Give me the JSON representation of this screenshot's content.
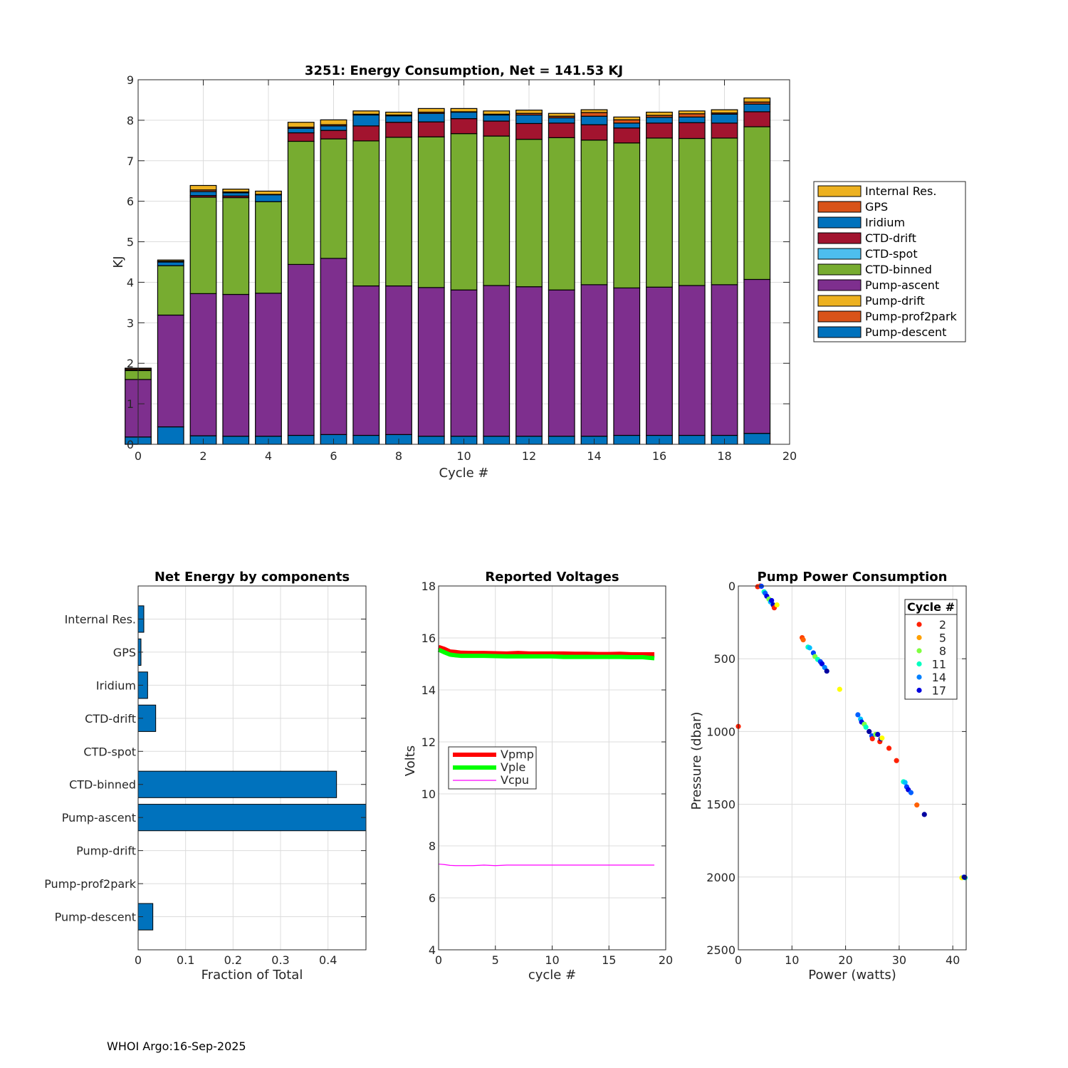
{
  "footer": "WHOI Argo:16-Sep-2025",
  "chart_data": [
    {
      "id": "energy",
      "type": "bar",
      "stacked": true,
      "title": "3251: Energy Consumption,  Net = 141.53 KJ",
      "xlabel": "Cycle #",
      "ylabel": "KJ",
      "xlim": [
        0,
        20
      ],
      "ylim": [
        0,
        9
      ],
      "xticks": [
        0,
        2,
        4,
        6,
        8,
        10,
        12,
        14,
        16,
        18,
        20
      ],
      "yticks": [
        0,
        1,
        2,
        3,
        4,
        5,
        6,
        7,
        8,
        9
      ],
      "grid": true,
      "legend_position": "outside-right",
      "categories": [
        0,
        1,
        2,
        3,
        4,
        5,
        6,
        7,
        8,
        9,
        10,
        11,
        12,
        13,
        14,
        15,
        16,
        17,
        18,
        19
      ],
      "series": [
        {
          "name": "Pump-descent",
          "color": "#0072BD",
          "values": [
            0.18,
            0.43,
            0.21,
            0.2,
            0.2,
            0.22,
            0.24,
            0.22,
            0.24,
            0.2,
            0.2,
            0.2,
            0.2,
            0.2,
            0.2,
            0.22,
            0.22,
            0.22,
            0.22,
            0.27
          ]
        },
        {
          "name": "Pump-prof2park",
          "color": "#D95319",
          "values": [
            0,
            0,
            0,
            0,
            0,
            0,
            0,
            0,
            0,
            0,
            0,
            0,
            0,
            0,
            0,
            0,
            0,
            0,
            0,
            0
          ]
        },
        {
          "name": "Pump-drift",
          "color": "#EDB120",
          "values": [
            0,
            0,
            0,
            0,
            0,
            0,
            0,
            0,
            0,
            0,
            0,
            0,
            0,
            0,
            0,
            0,
            0,
            0,
            0,
            0
          ]
        },
        {
          "name": "Pump-ascent",
          "color": "#7E2F8E",
          "values": [
            1.42,
            2.76,
            3.51,
            3.5,
            3.53,
            4.22,
            4.35,
            3.69,
            3.67,
            3.67,
            3.61,
            3.72,
            3.69,
            3.61,
            3.74,
            3.64,
            3.66,
            3.7,
            3.72,
            3.8
          ]
        },
        {
          "name": "CTD-binned",
          "color": "#77AC30",
          "values": [
            0.22,
            1.22,
            2.38,
            2.39,
            2.26,
            3.04,
            2.95,
            3.58,
            3.67,
            3.72,
            3.86,
            3.69,
            3.64,
            3.76,
            3.57,
            3.58,
            3.68,
            3.63,
            3.62,
            3.77
          ]
        },
        {
          "name": "CTD-spot",
          "color": "#4DBEEE",
          "values": [
            0,
            0,
            0,
            0,
            0,
            0,
            0,
            0,
            0,
            0,
            0,
            0,
            0,
            0,
            0,
            0,
            0,
            0,
            0,
            0
          ]
        },
        {
          "name": "CTD-drift",
          "color": "#A2142F",
          "values": [
            0,
            0,
            0.04,
            0.04,
            0,
            0.21,
            0.21,
            0.37,
            0.37,
            0.37,
            0.37,
            0.37,
            0.39,
            0.36,
            0.38,
            0.37,
            0.37,
            0.39,
            0.37,
            0.37
          ]
        },
        {
          "name": "Iridium",
          "color": "#0072BD",
          "values": [
            0.02,
            0.09,
            0.1,
            0.08,
            0.17,
            0.11,
            0.11,
            0.27,
            0.16,
            0.21,
            0.16,
            0.15,
            0.21,
            0.13,
            0.21,
            0.12,
            0.14,
            0.14,
            0.22,
            0.19
          ]
        },
        {
          "name": "GPS",
          "color": "#D95319",
          "values": [
            0.03,
            0.02,
            0.04,
            0.02,
            0.01,
            0.03,
            0.03,
            0.02,
            0.02,
            0.03,
            0.01,
            0.02,
            0.04,
            0.04,
            0.09,
            0.08,
            0.05,
            0.08,
            0.03,
            0.05
          ]
        },
        {
          "name": "Internal Res.",
          "color": "#EDB120",
          "values": [
            0.01,
            0.03,
            0.11,
            0.07,
            0.08,
            0.12,
            0.12,
            0.08,
            0.07,
            0.09,
            0.08,
            0.08,
            0.08,
            0.07,
            0.07,
            0.07,
            0.08,
            0.07,
            0.08,
            0.1
          ]
        }
      ],
      "legend": [
        "Internal Res.",
        "GPS",
        "Iridium",
        "CTD-drift",
        "CTD-spot",
        "CTD-binned",
        "Pump-ascent",
        "Pump-drift",
        "Pump-prof2park",
        "Pump-descent"
      ]
    },
    {
      "id": "components",
      "type": "bar",
      "orientation": "horizontal",
      "title": "Net Energy by components",
      "xlabel": "Fraction of Total",
      "ylabel": "",
      "xlim": [
        0,
        0.48
      ],
      "xticks": [
        0,
        0.1,
        0.2,
        0.3,
        0.4
      ],
      "xticklabels": [
        "0",
        "0.1",
        "0.2",
        "0.3",
        "0.4"
      ],
      "grid": true,
      "color": "#0072BD",
      "categories": [
        "Internal Res.",
        "GPS",
        "Iridium",
        "CTD-drift",
        "CTD-spot",
        "CTD-binned",
        "Pump-ascent",
        "Pump-drift",
        "Pump-prof2park",
        "Pump-descent"
      ],
      "values": [
        0.012,
        0.006,
        0.02,
        0.037,
        0,
        0.418,
        0.5,
        0,
        0,
        0.031
      ]
    },
    {
      "id": "voltages",
      "type": "line",
      "title": "Reported Voltages",
      "xlabel": "cycle #",
      "ylabel": "Volts",
      "xlim": [
        0,
        20
      ],
      "ylim": [
        4,
        18
      ],
      "xticks": [
        0,
        5,
        10,
        15,
        20
      ],
      "yticks": [
        4,
        6,
        8,
        10,
        12,
        14,
        16,
        18
      ],
      "grid": true,
      "legend_position": "middle-left",
      "x": [
        0,
        0.5,
        1,
        1.5,
        2,
        3,
        4,
        5,
        6,
        7,
        8,
        9,
        10,
        11,
        12,
        13,
        14,
        15,
        16,
        17,
        18,
        19
      ],
      "series": [
        {
          "name": "Vpmp",
          "color": "#FF0000",
          "width": "thick",
          "values": [
            15.65,
            15.58,
            15.48,
            15.46,
            15.43,
            15.42,
            15.42,
            15.41,
            15.4,
            15.42,
            15.4,
            15.4,
            15.4,
            15.4,
            15.39,
            15.39,
            15.38,
            15.38,
            15.39,
            15.37,
            15.37,
            15.37
          ]
        },
        {
          "name": "Vple",
          "color": "#00FF00",
          "width": "thick",
          "values": [
            15.55,
            15.45,
            15.36,
            15.33,
            15.31,
            15.31,
            15.31,
            15.3,
            15.29,
            15.29,
            15.29,
            15.29,
            15.29,
            15.27,
            15.27,
            15.27,
            15.27,
            15.27,
            15.27,
            15.26,
            15.26,
            15.22
          ]
        },
        {
          "name": "Vcpu",
          "color": "#FF00FF",
          "width": "thin",
          "values": [
            7.3,
            7.28,
            7.25,
            7.24,
            7.24,
            7.24,
            7.26,
            7.24,
            7.26,
            7.26,
            7.26,
            7.26,
            7.26,
            7.26,
            7.26,
            7.26,
            7.26,
            7.26,
            7.26,
            7.26,
            7.26,
            7.26
          ]
        }
      ]
    },
    {
      "id": "pump",
      "type": "scatter",
      "title": "Pump Power Consumption",
      "xlabel": "Power (watts)",
      "ylabel": "Pressure (dbar)",
      "xlim": [
        0,
        42.5
      ],
      "ylim": [
        2500,
        0
      ],
      "xticks": [
        0,
        10,
        20,
        30,
        40
      ],
      "yticks": [
        0,
        500,
        1000,
        1500,
        2000,
        2500
      ],
      "grid": true,
      "legend_title": "Cycle #",
      "legend_position": "top-right",
      "legend": [
        {
          "label": "2",
          "color": "#FF2000"
        },
        {
          "label": "5",
          "color": "#FFA000"
        },
        {
          "label": "8",
          "color": "#80FF40"
        },
        {
          "label": "11",
          "color": "#00FFC0"
        },
        {
          "label": "14",
          "color": "#0080FF"
        },
        {
          "label": "17",
          "color": "#0000E0"
        }
      ],
      "points": [
        {
          "x": 3.6,
          "y": 5,
          "c": "#FF2000"
        },
        {
          "x": 4.1,
          "y": 0,
          "c": "#FF4000"
        },
        {
          "x": 4.3,
          "y": 2,
          "c": "#0040FF"
        },
        {
          "x": 4.8,
          "y": 40,
          "c": "#00FFC0"
        },
        {
          "x": 5.0,
          "y": 50,
          "c": "#0060FF"
        },
        {
          "x": 5.3,
          "y": 70,
          "c": "#0000E0"
        },
        {
          "x": 5.7,
          "y": 90,
          "c": "#80FF40"
        },
        {
          "x": 6.0,
          "y": 110,
          "c": "#00C0FF"
        },
        {
          "x": 6.2,
          "y": 100,
          "c": "#0000E0"
        },
        {
          "x": 6.5,
          "y": 130,
          "c": "#0000C0"
        },
        {
          "x": 6.7,
          "y": 150,
          "c": "#FF2000"
        },
        {
          "x": 7.2,
          "y": 130,
          "c": "#FFFF00"
        },
        {
          "x": 0.0,
          "y": 965,
          "c": "#FF2000"
        },
        {
          "x": 11.9,
          "y": 355,
          "c": "#FF4000"
        },
        {
          "x": 12.1,
          "y": 370,
          "c": "#FF6000"
        },
        {
          "x": 13.0,
          "y": 420,
          "c": "#00FFC0"
        },
        {
          "x": 13.3,
          "y": 425,
          "c": "#00C0FF"
        },
        {
          "x": 14.0,
          "y": 460,
          "c": "#0040FF"
        },
        {
          "x": 14.3,
          "y": 485,
          "c": "#80FF40"
        },
        {
          "x": 14.8,
          "y": 505,
          "c": "#00FFC0"
        },
        {
          "x": 15.3,
          "y": 520,
          "c": "#0040FF"
        },
        {
          "x": 15.6,
          "y": 535,
          "c": "#0000E0"
        },
        {
          "x": 16.1,
          "y": 560,
          "c": "#0080FF"
        },
        {
          "x": 16.5,
          "y": 585,
          "c": "#0000A0"
        },
        {
          "x": 18.9,
          "y": 710,
          "c": "#FFFF00"
        },
        {
          "x": 22.3,
          "y": 885,
          "c": "#0060FF"
        },
        {
          "x": 22.8,
          "y": 915,
          "c": "#00C0FF"
        },
        {
          "x": 23.0,
          "y": 935,
          "c": "#0000E0"
        },
        {
          "x": 23.5,
          "y": 950,
          "c": "#80FF40"
        },
        {
          "x": 23.8,
          "y": 970,
          "c": "#00FFC0"
        },
        {
          "x": 24.4,
          "y": 1000,
          "c": "#0000A0"
        },
        {
          "x": 24.9,
          "y": 1030,
          "c": "#0040FF"
        },
        {
          "x": 25.0,
          "y": 1050,
          "c": "#FF2000"
        },
        {
          "x": 25.6,
          "y": 1020,
          "c": "#80FF40"
        },
        {
          "x": 26.0,
          "y": 1020,
          "c": "#0000C0"
        },
        {
          "x": 26.4,
          "y": 1070,
          "c": "#FF2000"
        },
        {
          "x": 26.6,
          "y": 1050,
          "c": "#0000C0"
        },
        {
          "x": 26.8,
          "y": 1045,
          "c": "#FFFF00"
        },
        {
          "x": 28.1,
          "y": 1115,
          "c": "#FF2000"
        },
        {
          "x": 29.5,
          "y": 1200,
          "c": "#FF2000"
        },
        {
          "x": 30.8,
          "y": 1345,
          "c": "#00FFC0"
        },
        {
          "x": 31.1,
          "y": 1350,
          "c": "#00C0FF"
        },
        {
          "x": 31.4,
          "y": 1380,
          "c": "#0040FF"
        },
        {
          "x": 31.7,
          "y": 1400,
          "c": "#0000E0"
        },
        {
          "x": 32.2,
          "y": 1420,
          "c": "#0060FF"
        },
        {
          "x": 33.3,
          "y": 1505,
          "c": "#FF6000"
        },
        {
          "x": 34.7,
          "y": 1570,
          "c": "#0000A0"
        },
        {
          "x": 41.7,
          "y": 2005,
          "c": "#FFFF00"
        },
        {
          "x": 42.1,
          "y": 2000,
          "c": "#0040FF"
        },
        {
          "x": 42.3,
          "y": 2005,
          "c": "#00FFC0"
        },
        {
          "x": 42.2,
          "y": 2002,
          "c": "#0000A0"
        }
      ]
    }
  ]
}
